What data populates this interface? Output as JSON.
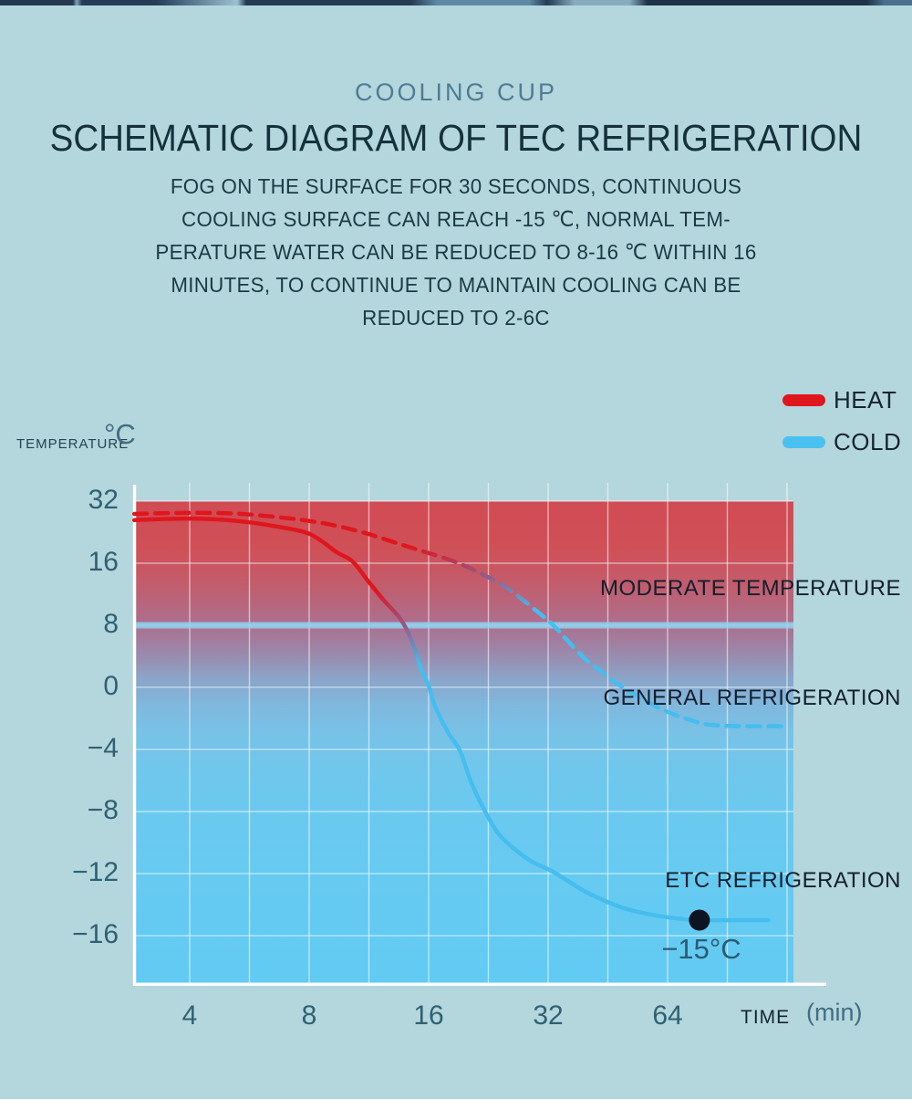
{
  "page": {
    "background": "#b4d6dd"
  },
  "header": {
    "kicker": "COOLING CUP",
    "title": "SCHEMATIC DIAGRAM OF TEC REFRIGERATION",
    "description_lines": [
      "FOG ON THE SURFACE FOR 30 SECONDS, CONTINUOUS",
      "COOLING SURFACE CAN REACH -15 ℃, NORMAL TEM-",
      "PERATURE WATER CAN BE REDUCED TO 8-16 ℃ WITHIN 16",
      "MINUTES, TO CONTINUE TO MAINTAIN COOLING CAN BE",
      "REDUCED TO 2-6C"
    ]
  },
  "legend": {
    "items": [
      {
        "label": "HEAT",
        "color": "#e0161e"
      },
      {
        "label": "COLD",
        "color": "#49c1f0"
      }
    ]
  },
  "axes": {
    "y_title": "TEMPERATURE",
    "y_unit": "°C",
    "x_title": "TIME",
    "x_unit": "(min)"
  },
  "chart_data": {
    "type": "line",
    "title": "SCHEMATIC DIAGRAM OF TEC REFRIGERATION",
    "xlabel": "TIME (min)",
    "ylabel": "TEMPERATURE °C",
    "x_scale": "log2",
    "x_ticks": [
      4,
      8,
      16,
      32,
      64
    ],
    "y_ticks": [
      32,
      16,
      8,
      0,
      -4,
      -8,
      -12,
      -16
    ],
    "xlim": [
      2.9,
      132
    ],
    "ylim": [
      -19,
      32
    ],
    "grid": true,
    "legend_position": "top-right",
    "highlight_band_y": 8,
    "series": [
      {
        "name": "solid",
        "style": "solid",
        "color_top": "#e0161e",
        "color_bottom": "#45bdef",
        "points": [
          [
            2.9,
            27.1
          ],
          [
            3.5,
            27.4
          ],
          [
            4,
            27.5
          ],
          [
            4.7,
            27.3
          ],
          [
            5.6,
            26.6
          ],
          [
            6.5,
            25.6
          ],
          [
            8,
            23.6
          ],
          [
            9.4,
            18.8
          ],
          [
            10.3,
            16.4
          ],
          [
            11.3,
            13.6
          ],
          [
            12.3,
            11.3
          ],
          [
            13.4,
            9.2
          ],
          [
            14.1,
            7.4
          ],
          [
            14.8,
            4.8
          ],
          [
            15.3,
            2.5
          ],
          [
            16,
            0.2
          ],
          [
            16.6,
            -1.2
          ],
          [
            17.9,
            -2.9
          ],
          [
            19.2,
            -4.1
          ],
          [
            20.7,
            -6.4
          ],
          [
            23.5,
            -9.1
          ],
          [
            26,
            -10.3
          ],
          [
            29,
            -11.2
          ],
          [
            33,
            -11.9
          ],
          [
            40,
            -13.2
          ],
          [
            48,
            -14.1
          ],
          [
            57,
            -14.6
          ],
          [
            68,
            -14.9
          ],
          [
            77,
            -15
          ],
          [
            95,
            -15
          ],
          [
            115,
            -15
          ]
        ]
      },
      {
        "name": "dashed",
        "style": "dashed",
        "color_top": "#e0161e",
        "color_bottom": "#45bdef",
        "points": [
          [
            2.9,
            28.7
          ],
          [
            4,
            29.0
          ],
          [
            5.2,
            28.8
          ],
          [
            6.5,
            28.0
          ],
          [
            8,
            26.9
          ],
          [
            9.5,
            25.5
          ],
          [
            11.3,
            23.5
          ],
          [
            13,
            21.5
          ],
          [
            15.2,
            19.3
          ],
          [
            18.5,
            16.5
          ],
          [
            21.4,
            14.8
          ],
          [
            24.7,
            13.1
          ],
          [
            27.3,
            11.5
          ],
          [
            31,
            9.2
          ],
          [
            33,
            8.0
          ],
          [
            36,
            5.9
          ],
          [
            40,
            3.5
          ],
          [
            44,
            1.9
          ],
          [
            47,
            0.7
          ],
          [
            54,
            -0.6
          ],
          [
            63,
            -1.5
          ],
          [
            73,
            -2.1
          ],
          [
            81,
            -2.4
          ],
          [
            96,
            -2.5
          ],
          [
            125,
            -2.5
          ]
        ]
      }
    ],
    "annotations": [
      "MODERATE TEMPERATURE",
      "GENERAL REFRIGERATION",
      "ETC REFRIGERATION"
    ],
    "marker": {
      "x": 77,
      "y": -15,
      "label": "−15°C",
      "color": "#0c1422"
    }
  }
}
